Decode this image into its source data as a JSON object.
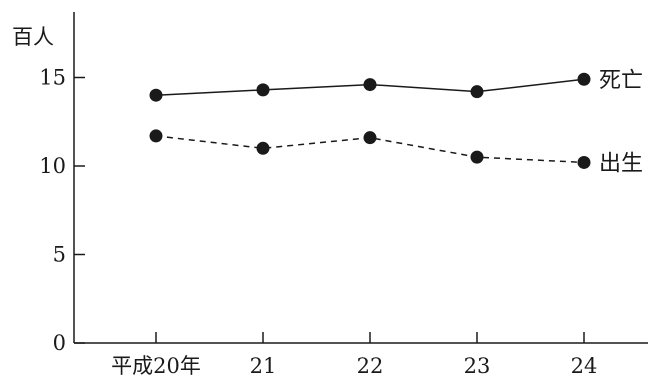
{
  "chart_data": {
    "type": "line",
    "categories": [
      "平成20年",
      "21",
      "22",
      "23",
      "24"
    ],
    "ylabel": "百人",
    "ylim": [
      0,
      18
    ],
    "yticks": [
      0,
      5,
      10,
      15
    ],
    "grid": false,
    "legend": "labels at line ends",
    "series": [
      {
        "name": "死亡",
        "values": [
          14.0,
          14.3,
          14.6,
          14.2,
          14.9
        ],
        "style": "solid",
        "color": "#1a1a1a"
      },
      {
        "name": "出生",
        "values": [
          11.7,
          11.0,
          11.6,
          10.5,
          10.2
        ],
        "style": "dashed",
        "color": "#1a1a1a"
      }
    ]
  }
}
